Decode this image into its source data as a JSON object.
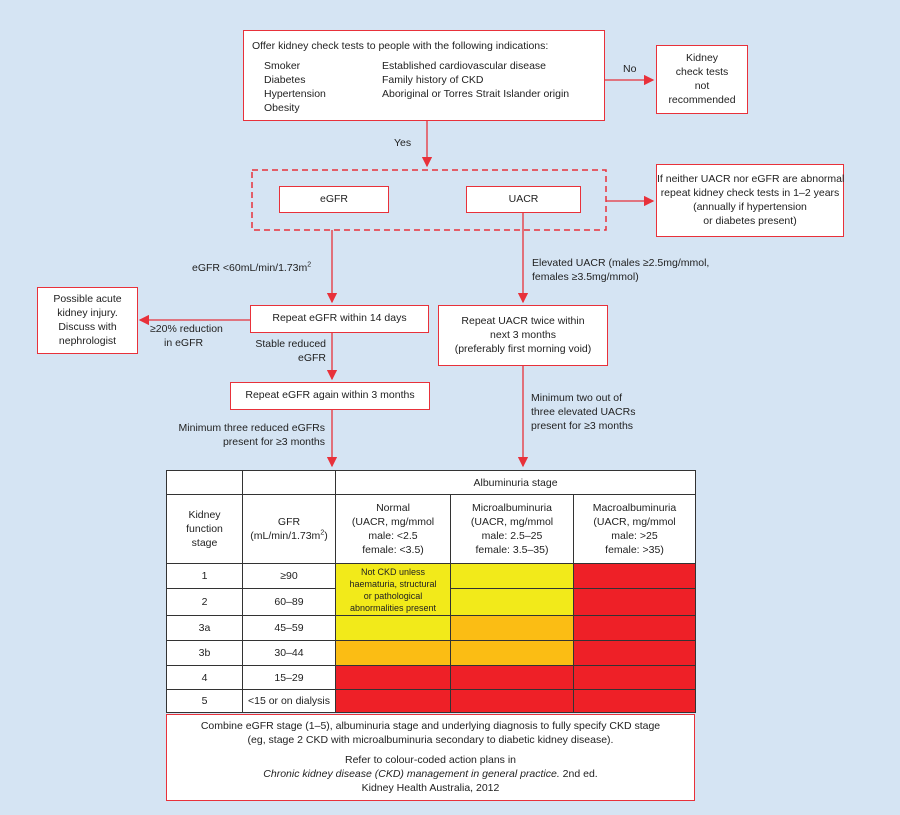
{
  "top_box": {
    "title": "Offer kidney check tests to people with the following indications:",
    "indications_left": [
      "Smoker",
      "Diabetes",
      "Hypertension",
      "Obesity"
    ],
    "indications_right": [
      "Established cardiovascular disease",
      "Family history of CKD",
      "Aboriginal or Torres Strait Islander origin"
    ]
  },
  "no_label": "No",
  "yes_label": "Yes",
  "not_recommended": [
    "Kidney",
    "check tests",
    "not",
    "recommended"
  ],
  "tests": {
    "egfr": "eGFR",
    "uacr": "UACR"
  },
  "neither_abnormal": [
    "If neither UACR nor eGFR are abnormal",
    "repeat kidney check tests in 1–2 years",
    "(annually if hypertension",
    "or diabetes present)"
  ],
  "egfr_branch": {
    "condition": "eGFR <60mL/min/1.73m",
    "condition_sup": "2",
    "repeat_14": "Repeat eGFR within 14 days",
    "reduction_label": [
      "≥20% reduction",
      "in eGFR"
    ],
    "aki_box": [
      "Possible acute",
      "kidney injury.",
      "Discuss with",
      "nephrologist"
    ],
    "stable_label": [
      "Stable reduced",
      "eGFR"
    ],
    "repeat_3m": "Repeat eGFR again within 3 months",
    "min_three": [
      "Minimum three reduced eGFRs",
      "present for ≥3 months"
    ]
  },
  "uacr_branch": {
    "condition": [
      "Elevated UACR (males ≥2.5mg/mmol,",
      "females ≥3.5mg/mmol)"
    ],
    "repeat": [
      "Repeat UACR twice within",
      "next 3 months",
      "(preferably first morning void)"
    ],
    "min_two": [
      "Minimum two out of",
      "three elevated UACRs",
      "present for ≥3 months"
    ]
  },
  "table": {
    "albuminuria_header": "Albuminuria stage",
    "col_stage": [
      "Kidney",
      "function",
      "stage"
    ],
    "col_gfr": [
      "GFR",
      "(mL/min/1.73m",
      "2",
      ")"
    ],
    "col_normal": [
      "Normal",
      "(UACR, mg/mmol",
      "male: <2.5",
      "female: <3.5)"
    ],
    "col_micro": [
      "Microalbuminuria",
      "(UACR, mg/mmol",
      "male: 2.5–25",
      "female: 3.5–35)"
    ],
    "col_macro": [
      "Macroalbuminuria",
      "(UACR, mg/mmol",
      "male: >25",
      "female: >35)"
    ],
    "not_ckd_note": [
      "Not CKD unless",
      "haematuria, structural",
      "or pathological",
      "abnormalities present"
    ],
    "rows": [
      {
        "stage": "1",
        "gfr": "≥90",
        "normal": "yellow",
        "micro": "yellow",
        "macro": "red"
      },
      {
        "stage": "2",
        "gfr": "60–89",
        "normal": "yellow",
        "micro": "yellow",
        "macro": "red"
      },
      {
        "stage": "3a",
        "gfr": "45–59",
        "normal": "yellow",
        "micro": "orange",
        "macro": "red"
      },
      {
        "stage": "3b",
        "gfr": "30–44",
        "normal": "orange",
        "micro": "orange",
        "macro": "red"
      },
      {
        "stage": "4",
        "gfr": "15–29",
        "normal": "red",
        "micro": "red",
        "macro": "red"
      },
      {
        "stage": "5",
        "gfr": "<15 or on dialysis",
        "normal": "red",
        "micro": "red",
        "macro": "red"
      }
    ]
  },
  "footer": {
    "line1": "Combine eGFR stage (1–5), albuminuria stage and underlying diagnosis to fully specify CKD stage",
    "line2": "(eg, stage 2 CKD with microalbuminuria secondary to diabetic kidney disease).",
    "line3": "Refer to colour-coded action plans in",
    "line4_italic": "Chronic kidney disease (CKD) management in general practice.",
    "line4_rest": " 2nd ed.",
    "line5": "Kidney Health Australia, 2012"
  },
  "colors": {
    "background": "#d5e4f3",
    "accent_red": "#e8313a",
    "yellow": "#f2ea1a",
    "orange": "#fbbd14",
    "red": "#ee2027"
  }
}
